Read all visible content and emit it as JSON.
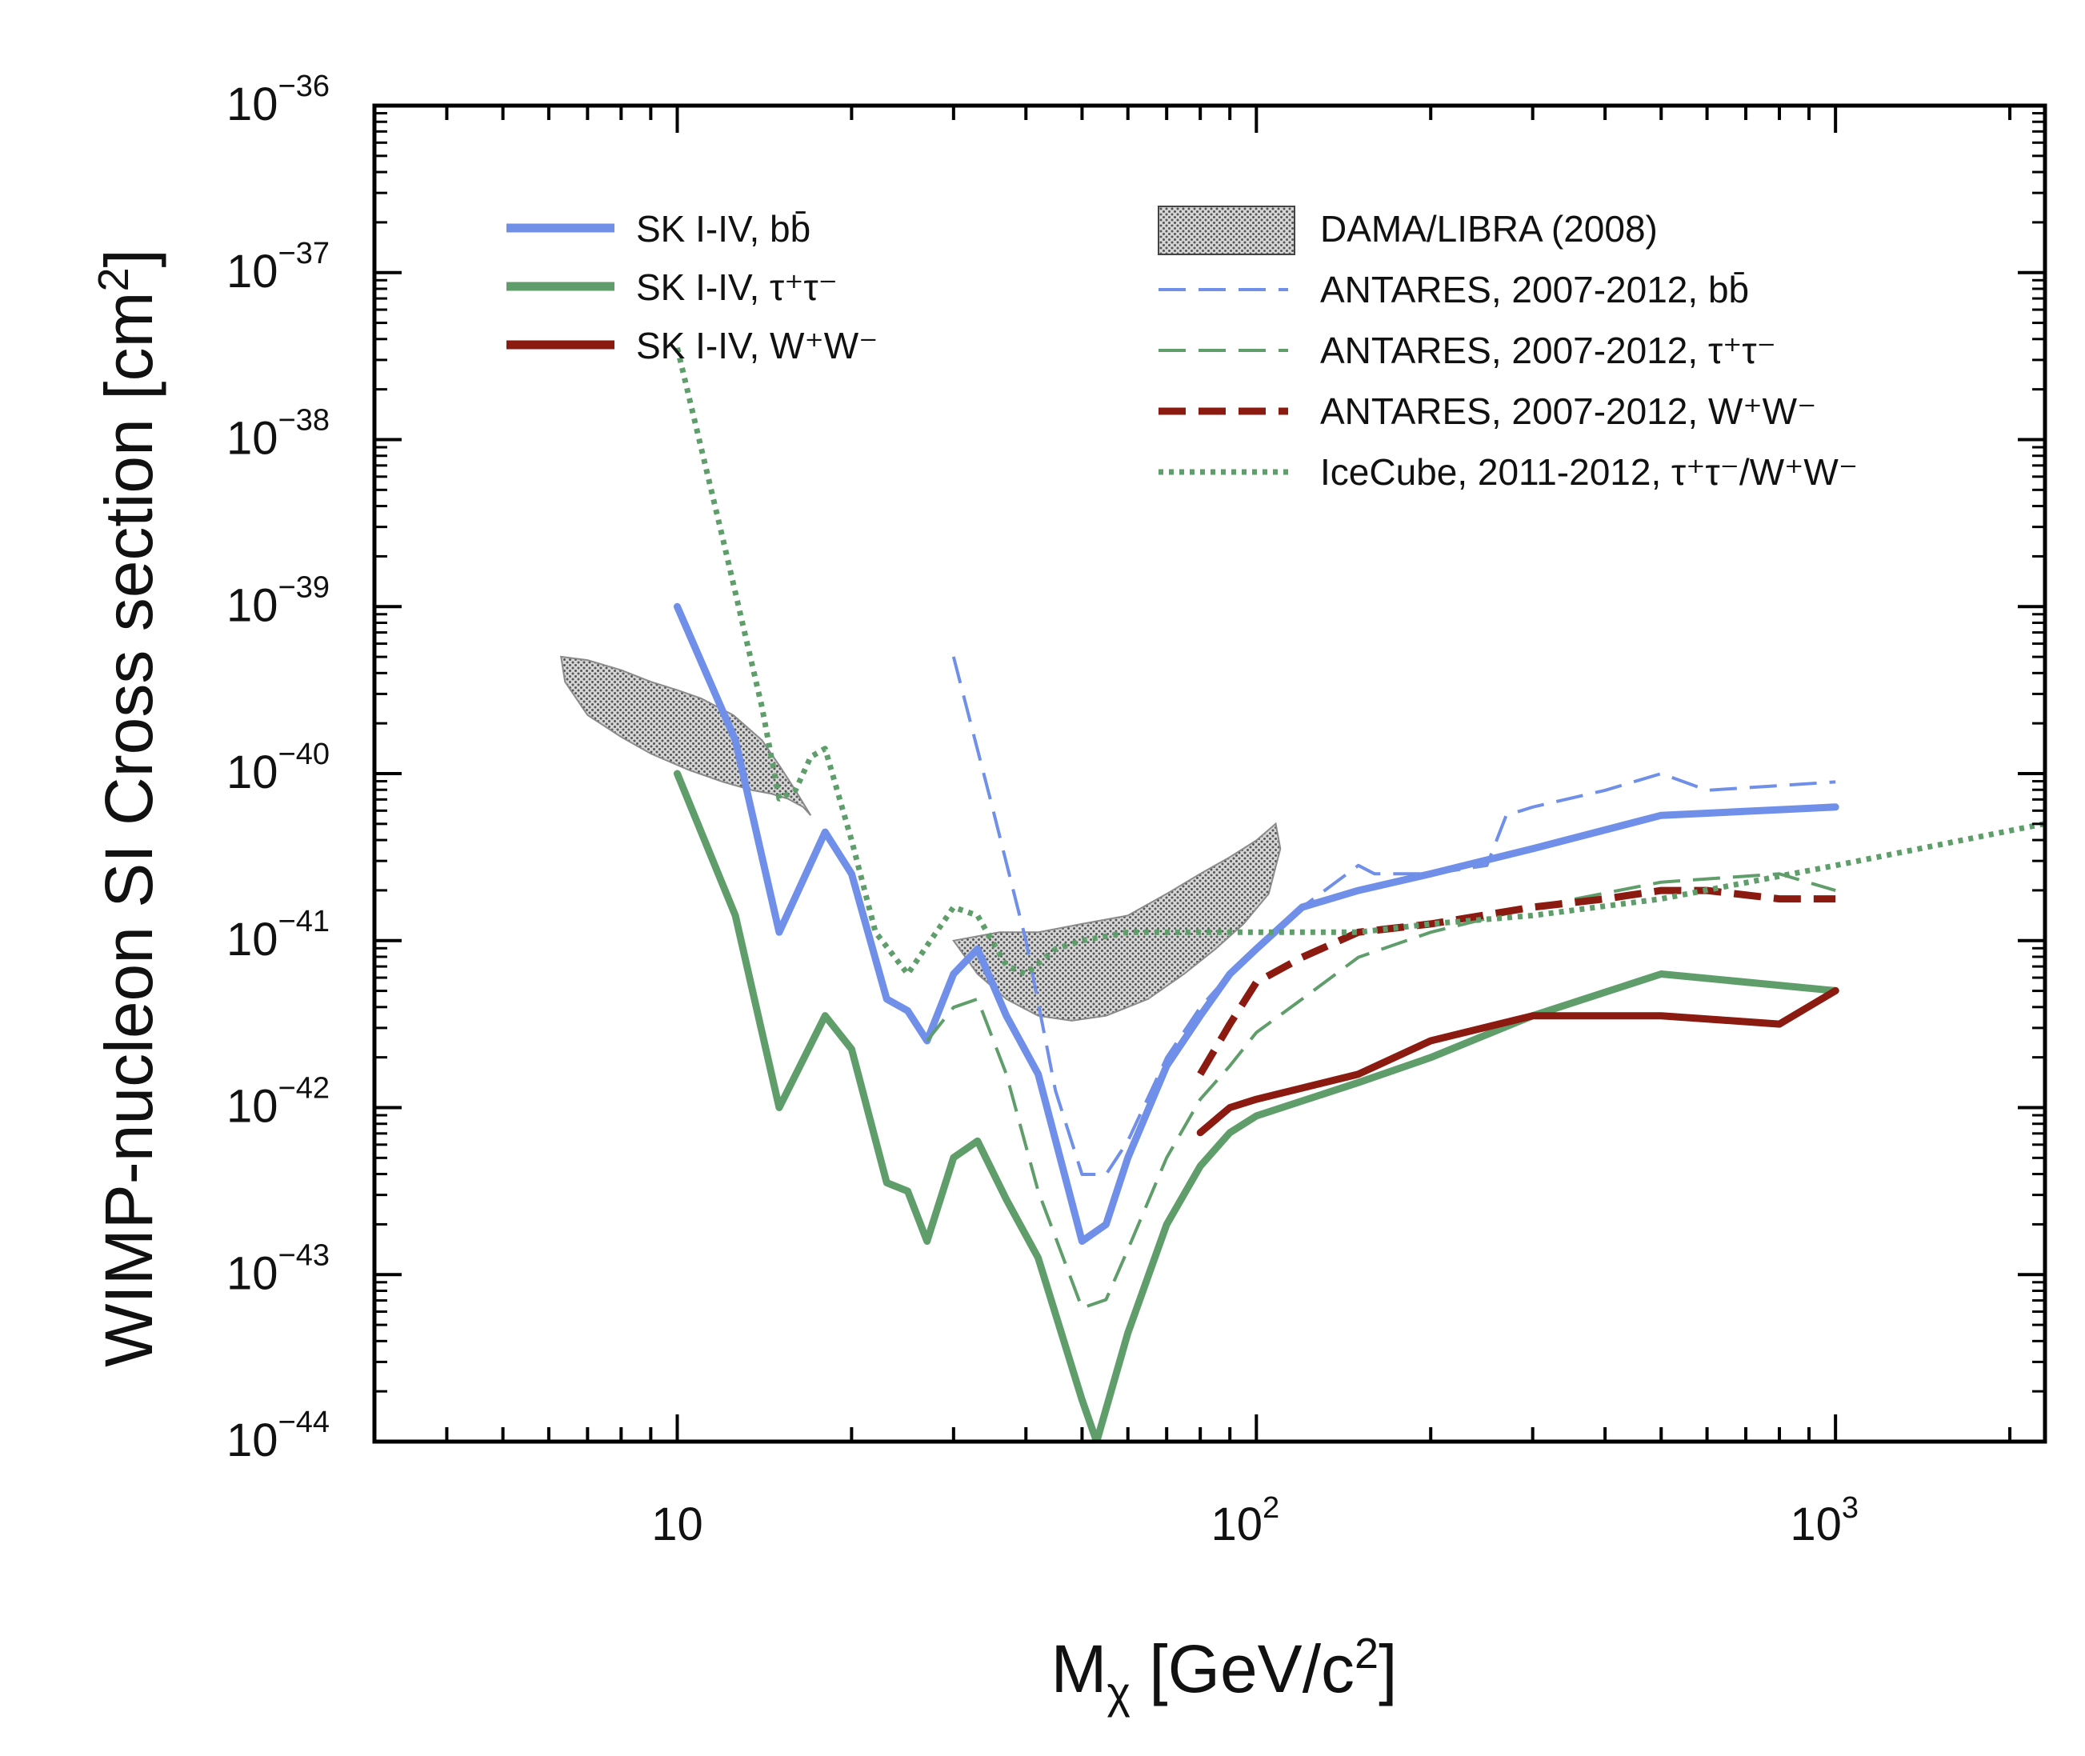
{
  "chart_data": {
    "type": "line",
    "xscale": "log",
    "yscale": "log",
    "xlim": [
      3,
      2300
    ],
    "ylim": [
      1e-44,
      1e-36
    ],
    "xlabel": "M_χ [GeV/c²]",
    "ylabel": "WIMP-nucleon SI Cross section [cm²]",
    "x_tick_labels": [
      {
        "value": 10,
        "base": "10",
        "exp": ""
      },
      {
        "value": 100,
        "base": "10",
        "exp": "2"
      },
      {
        "value": 1000,
        "base": "10",
        "exp": "3"
      }
    ],
    "y_tick_labels": [
      {
        "value": -36,
        "base": "10",
        "exp": "−36"
      },
      {
        "value": -37,
        "base": "10",
        "exp": "−37"
      },
      {
        "value": -38,
        "base": "10",
        "exp": "−38"
      },
      {
        "value": -39,
        "base": "10",
        "exp": "−39"
      },
      {
        "value": -40,
        "base": "10",
        "exp": "−40"
      },
      {
        "value": -41,
        "base": "10",
        "exp": "−41"
      },
      {
        "value": -42,
        "base": "10",
        "exp": "−42"
      },
      {
        "value": -43,
        "base": "10",
        "exp": "−43"
      },
      {
        "value": -44,
        "base": "10",
        "exp": "−44"
      }
    ],
    "legend_left": [
      {
        "series": "sk_bb",
        "label": "SK I-IV, bb̄"
      },
      {
        "series": "sk_tau",
        "label": "SK I-IV, τ⁺τ⁻"
      },
      {
        "series": "sk_ww",
        "label": "SK I-IV, W⁺W⁻"
      }
    ],
    "legend_right": [
      {
        "series": "dama",
        "label": "DAMA/LIBRA (2008)"
      },
      {
        "series": "antares_bb",
        "label": "ANTARES, 2007-2012, bb̄"
      },
      {
        "series": "antares_tau",
        "label": "ANTARES, 2007-2012, τ⁺τ⁻"
      },
      {
        "series": "antares_ww",
        "label": "ANTARES, 2007-2012, W⁺W⁻"
      },
      {
        "series": "icecube",
        "label": "IceCube, 2011-2012, τ⁺τ⁻/W⁺W⁻"
      }
    ],
    "series": [
      {
        "id": "sk_bb",
        "name": "SK I-IV, bb̄",
        "color": "#6f8fe8",
        "style": "solid",
        "width": 9,
        "x": [
          10,
          12.6,
          15,
          18,
          20,
          23,
          25,
          27,
          30,
          33,
          37,
          42,
          50,
          55,
          60,
          70,
          80,
          90,
          100,
          120,
          150,
          200,
          300,
          500,
          1000
        ],
        "log10_y": [
          -39.0,
          -39.8,
          -40.95,
          -40.35,
          -40.6,
          -41.35,
          -41.42,
          -41.6,
          -41.2,
          -41.05,
          -41.45,
          -41.8,
          -42.8,
          -42.7,
          -42.3,
          -41.75,
          -41.45,
          -41.2,
          -41.05,
          -40.8,
          -40.7,
          -40.6,
          -40.45,
          -40.25,
          -40.2
        ]
      },
      {
        "id": "sk_tau",
        "name": "SK I-IV, τ⁺τ⁻",
        "color": "#5f9e6b",
        "style": "solid",
        "width": 9,
        "x": [
          10,
          12.6,
          15,
          18,
          20,
          23,
          25,
          27,
          30,
          33,
          37,
          42,
          50,
          53,
          60,
          70,
          80,
          90,
          100,
          150,
          200,
          300,
          500,
          1000
        ],
        "log10_y": [
          -40.0,
          -40.85,
          -42.0,
          -41.45,
          -41.65,
          -42.45,
          -42.5,
          -42.8,
          -42.3,
          -42.2,
          -42.55,
          -42.9,
          -43.75,
          -44.0,
          -43.35,
          -42.7,
          -42.35,
          -42.15,
          -42.05,
          -41.85,
          -41.7,
          -41.45,
          -41.2,
          -41.3
        ]
      },
      {
        "id": "sk_ww",
        "name": "SK I-IV, W⁺W⁻",
        "color": "#8b1a10",
        "style": "solid",
        "width": 9,
        "x": [
          80,
          90,
          100,
          150,
          200,
          300,
          500,
          800,
          1000
        ],
        "log10_y": [
          -42.15,
          -42.0,
          -41.95,
          -41.8,
          -41.6,
          -41.45,
          -41.45,
          -41.5,
          -41.3
        ]
      },
      {
        "id": "antares_bb",
        "name": "ANTARES, 2007-2012, bb̄",
        "color": "#6f8fe8",
        "style": "dashed",
        "width": 4,
        "x": [
          30,
          35,
          40,
          45,
          50,
          55,
          60,
          70,
          80,
          90,
          100,
          120,
          150,
          160,
          180,
          200,
          250,
          270,
          300,
          400,
          500,
          600,
          1000
        ],
        "log10_y": [
          -39.3,
          -40.2,
          -41.0,
          -41.9,
          -42.4,
          -42.4,
          -42.2,
          -41.7,
          -41.4,
          -41.2,
          -41.05,
          -40.8,
          -40.55,
          -40.6,
          -40.6,
          -40.6,
          -40.55,
          -40.25,
          -40.2,
          -40.1,
          -40.0,
          -40.1,
          -40.05
        ]
      },
      {
        "id": "antares_tau",
        "name": "ANTARES, 2007-2012, τ⁺τ⁻",
        "color": "#5f9e6b",
        "style": "dashed",
        "width": 4,
        "x": [
          27,
          30,
          33,
          37,
          42,
          50,
          55,
          60,
          70,
          80,
          90,
          100,
          120,
          150,
          200,
          300,
          500,
          800,
          1000
        ],
        "log10_y": [
          -41.6,
          -41.4,
          -41.35,
          -41.8,
          -42.5,
          -43.2,
          -43.15,
          -42.85,
          -42.3,
          -41.95,
          -41.75,
          -41.55,
          -41.35,
          -41.1,
          -40.95,
          -40.8,
          -40.65,
          -40.6,
          -40.7
        ]
      },
      {
        "id": "antares_ww",
        "name": "ANTARES, 2007-2012, W⁺W⁻",
        "color": "#8b1a10",
        "style": "dashed",
        "width": 9,
        "x": [
          80,
          90,
          100,
          120,
          150,
          200,
          300,
          400,
          500,
          600,
          800,
          1000
        ],
        "log10_y": [
          -41.8,
          -41.5,
          -41.25,
          -41.1,
          -40.95,
          -40.9,
          -40.8,
          -40.75,
          -40.7,
          -40.7,
          -40.75,
          -40.75
        ]
      },
      {
        "id": "icecube",
        "name": "IceCube, 2011-2012, τ⁺τ⁻/W⁺W⁻",
        "color": "#5f9e6b",
        "style": "dotted",
        "width": 7,
        "x": [
          10,
          12,
          14,
          15,
          16,
          17,
          18,
          20,
          22,
          25,
          28,
          30,
          33,
          37,
          40,
          45,
          50,
          60,
          70,
          80,
          100,
          150,
          200,
          300,
          500,
          1000,
          2300
        ],
        "log10_y": [
          -37.45,
          -38.6,
          -39.6,
          -40.15,
          -40.1,
          -39.9,
          -39.85,
          -40.4,
          -40.95,
          -41.2,
          -40.95,
          -40.8,
          -40.85,
          -41.15,
          -41.2,
          -41.05,
          -41.0,
          -40.95,
          -40.95,
          -40.95,
          -40.95,
          -40.95,
          -40.9,
          -40.85,
          -40.75,
          -40.55,
          -40.3
        ]
      }
    ],
    "regions": [
      {
        "id": "dama",
        "name": "DAMA/LIBRA (2008)",
        "color": "#9a9a9a",
        "polygon_x": [
          6.3,
          7.0,
          8.0,
          9.0,
          10.0,
          11.0,
          12.5,
          14.0,
          15.0,
          16.0,
          17.0,
          16.5,
          15.5,
          14.5,
          13.5,
          12.0,
          10.5,
          9.0,
          8.0,
          7.0,
          6.4
        ],
        "polygon_log10_y": [
          -39.3,
          -39.32,
          -39.38,
          -39.45,
          -39.5,
          -39.55,
          -39.65,
          -39.8,
          -39.95,
          -40.1,
          -40.25,
          -40.2,
          -40.15,
          -40.12,
          -40.1,
          -40.05,
          -39.98,
          -39.88,
          -39.78,
          -39.65,
          -39.45
        ]
      },
      {
        "id": "dama",
        "name": "DAMA/LIBRA (2008)",
        "color": "#9a9a9a",
        "polygon_x": [
          30,
          36,
          42,
          50,
          60,
          70,
          80,
          90,
          100,
          108,
          110,
          105,
          95,
          85,
          75,
          65,
          55,
          48,
          42,
          37,
          33,
          30
        ],
        "polygon_log10_y": [
          -41.0,
          -40.95,
          -40.95,
          -40.9,
          -40.85,
          -40.72,
          -40.6,
          -40.5,
          -40.4,
          -40.3,
          -40.45,
          -40.72,
          -40.9,
          -41.05,
          -41.2,
          -41.35,
          -41.45,
          -41.48,
          -41.45,
          -41.35,
          -41.2,
          -41.0
        ]
      }
    ]
  }
}
